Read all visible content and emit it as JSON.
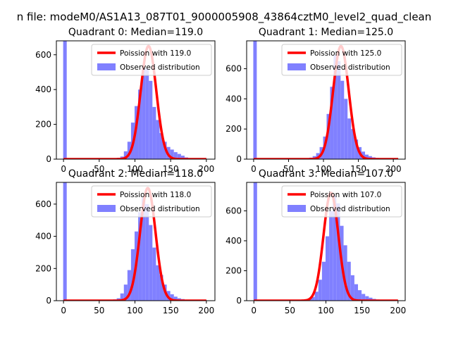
{
  "figure": {
    "suptitle": "n file: modeM0/AS1A13_087T01_9000005908_43864cztM0_level2_quad_clean"
  },
  "chart_data": [
    {
      "type": "bar",
      "title": "Quadrant 0: Median=119.0",
      "median": 119.0,
      "xlim": [
        -10,
        212
      ],
      "ylim": [
        0,
        680
      ],
      "xticks": [
        0,
        50,
        100,
        150,
        200
      ],
      "yticks": [
        0,
        200,
        400,
        600
      ],
      "grid": false,
      "legend_position": "top-right",
      "legend": [
        "Poission with 119.0",
        "Observed distribution"
      ],
      "hist_color": "#8080ff",
      "curve_color": "#ff0000",
      "bin_start": -0.5,
      "bin_width": 5,
      "hist_values": [
        680,
        0,
        0,
        0,
        0,
        0,
        0,
        0,
        0,
        0,
        0,
        0,
        0,
        0,
        5,
        8,
        15,
        45,
        100,
        210,
        305,
        400,
        530,
        520,
        450,
        300,
        225,
        150,
        100,
        70,
        55,
        40,
        30,
        20,
        10,
        5,
        3,
        2,
        1,
        1,
        0
      ],
      "curve": {
        "label": "Poission with 119.0",
        "lambda": 119.0,
        "peak": 650,
        "x_range": [
          0,
          200
        ]
      }
    },
    {
      "type": "bar",
      "title": "Quadrant 1: Median=125.0",
      "median": 125.0,
      "xlim": [
        -10,
        217
      ],
      "ylim": [
        0,
        785
      ],
      "xticks": [
        0,
        50,
        100,
        150,
        200
      ],
      "yticks": [
        0,
        200,
        400,
        600
      ],
      "grid": false,
      "legend_position": "top-right",
      "legend": [
        "Poission with 125.0",
        "Observed distribution"
      ],
      "hist_color": "#8080ff",
      "curve_color": "#ff0000",
      "bin_start": -0.5,
      "bin_width": 5,
      "hist_values": [
        785,
        0,
        0,
        0,
        0,
        0,
        0,
        0,
        0,
        0,
        0,
        0,
        0,
        0,
        0,
        5,
        10,
        20,
        40,
        80,
        150,
        300,
        480,
        690,
        650,
        520,
        400,
        270,
        200,
        130,
        80,
        50,
        30,
        20,
        12,
        8,
        4,
        2,
        1,
        1,
        0,
        0
      ],
      "curve": {
        "label": "Poission with 125.0",
        "lambda": 125.0,
        "peak": 750,
        "x_range": [
          0,
          207
        ]
      }
    },
    {
      "type": "bar",
      "title": "Quadrant 2: Median=118.0",
      "median": 118.0,
      "xlim": [
        -10,
        212
      ],
      "ylim": [
        0,
        735
      ],
      "xticks": [
        0,
        50,
        100,
        150,
        200
      ],
      "yticks": [
        0,
        200,
        400,
        600
      ],
      "grid": false,
      "legend_position": "top-right",
      "legend": [
        "Poission with 118.0",
        "Observed distribution"
      ],
      "hist_color": "#8080ff",
      "curve_color": "#ff0000",
      "bin_start": -0.5,
      "bin_width": 5,
      "hist_values": [
        735,
        0,
        0,
        0,
        0,
        0,
        0,
        0,
        0,
        0,
        0,
        0,
        0,
        4,
        8,
        15,
        45,
        100,
        190,
        320,
        430,
        550,
        640,
        600,
        470,
        330,
        220,
        160,
        100,
        60,
        40,
        25,
        15,
        10,
        5,
        3,
        2,
        1,
        1,
        0,
        0
      ],
      "curve": {
        "label": "Poission with 118.0",
        "lambda": 118.0,
        "peak": 700,
        "x_range": [
          0,
          200
        ]
      }
    },
    {
      "type": "bar",
      "title": "Quadrant 3: Median=107.0",
      "median": 107.0,
      "xlim": [
        -10,
        210
      ],
      "ylim": [
        0,
        790
      ],
      "xticks": [
        0,
        50,
        100,
        150,
        200
      ],
      "yticks": [
        0,
        200,
        400,
        600
      ],
      "grid": false,
      "legend_position": "top-right",
      "legend": [
        "Poission with 107.0",
        "Observed distribution"
      ],
      "hist_color": "#8080ff",
      "curve_color": "#ff0000",
      "bin_start": -0.5,
      "bin_width": 5,
      "hist_values": [
        790,
        0,
        0,
        0,
        0,
        0,
        0,
        0,
        0,
        0,
        0,
        0,
        0,
        0,
        0,
        10,
        25,
        60,
        140,
        260,
        430,
        600,
        700,
        650,
        500,
        370,
        260,
        170,
        110,
        70,
        45,
        30,
        20,
        12,
        8,
        4,
        2,
        1,
        1,
        0,
        0
      ],
      "curve": {
        "label": "Poission with 107.0",
        "lambda": 107.0,
        "peak": 720,
        "x_range": [
          0,
          200
        ]
      }
    }
  ]
}
